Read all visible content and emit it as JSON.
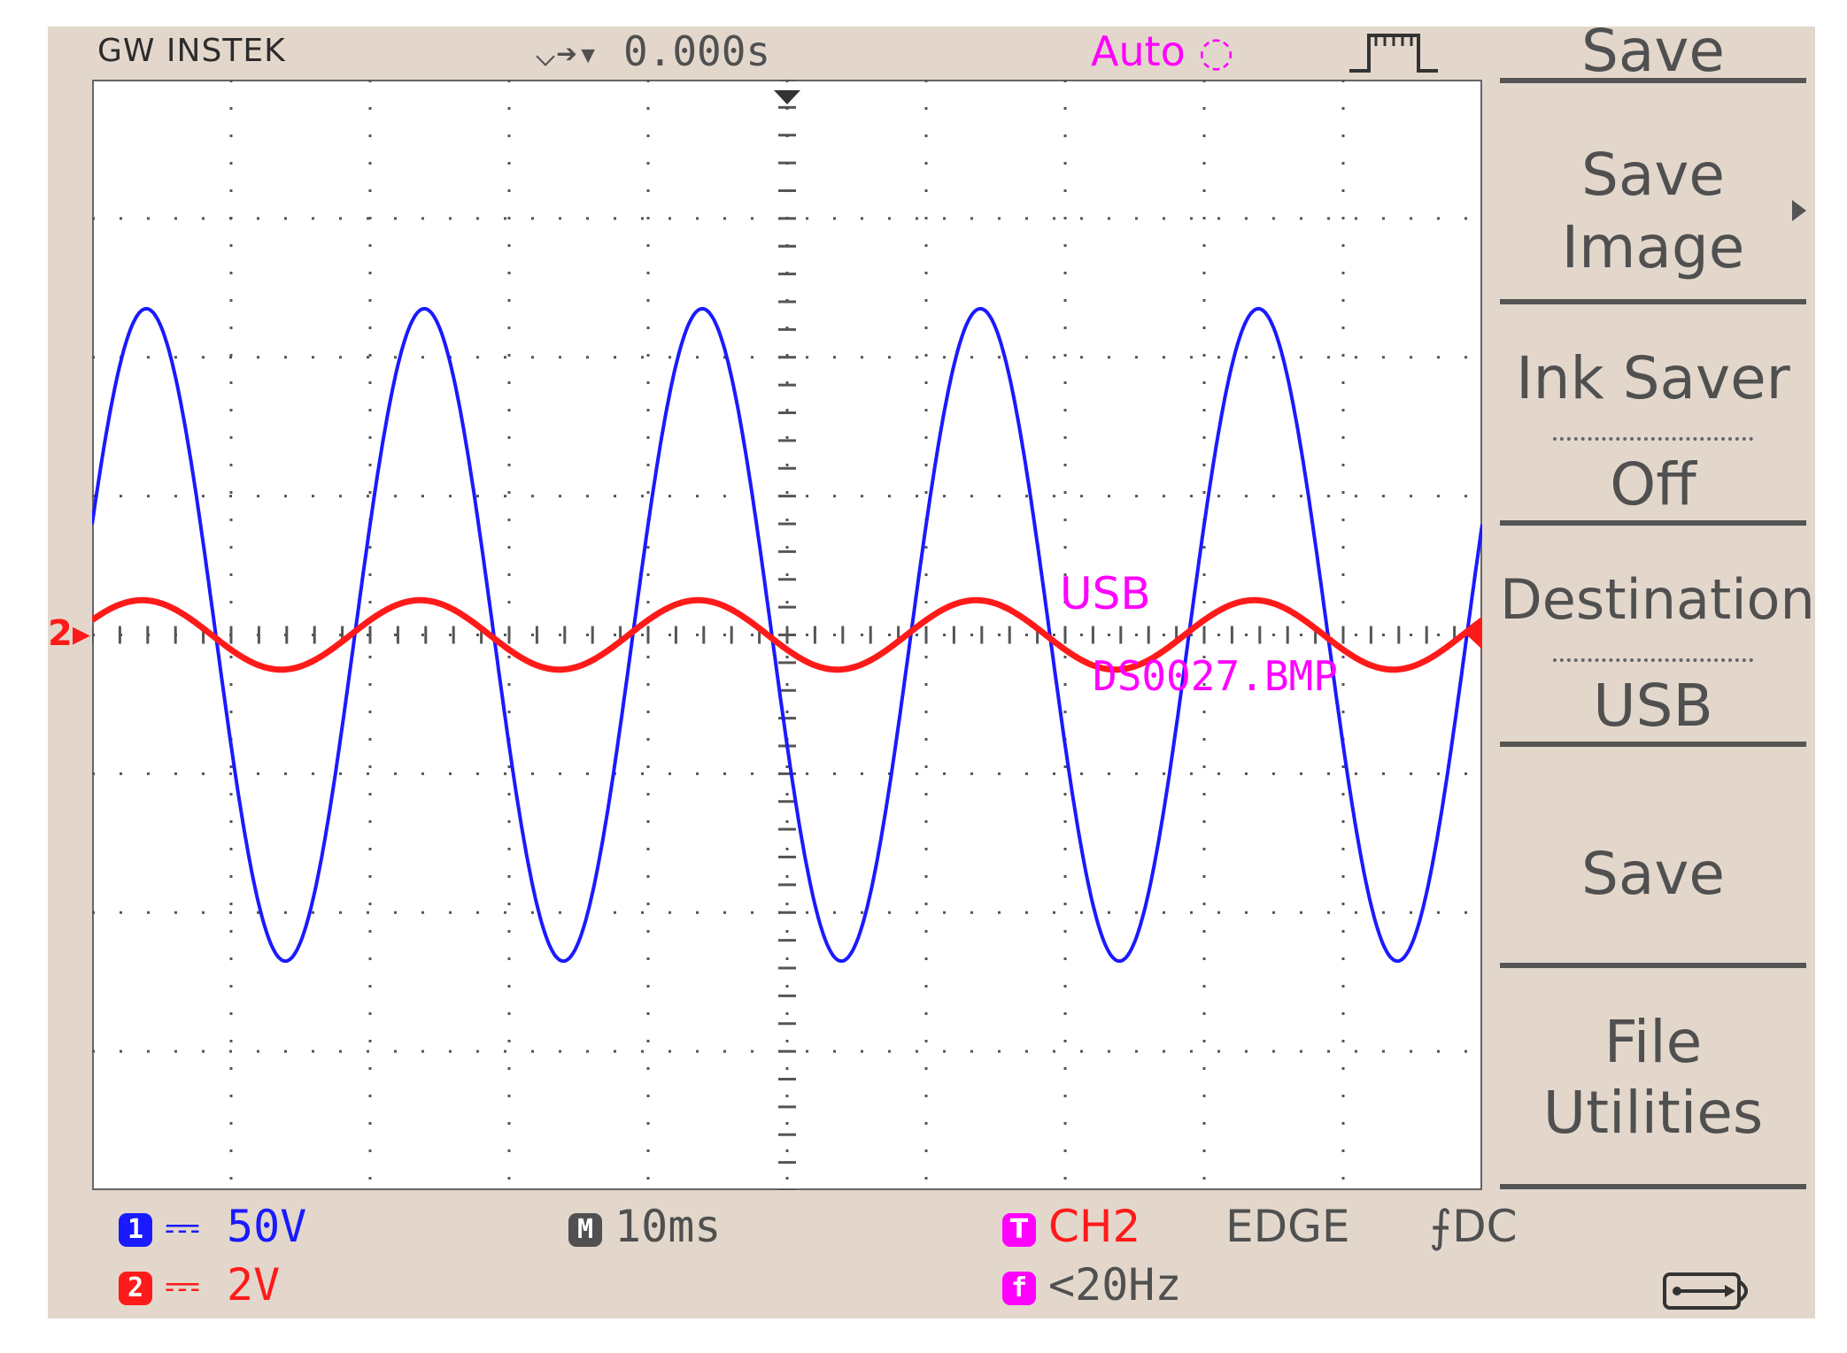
{
  "header": {
    "brand": "GW INSTEK",
    "trigger_position": "0.000s",
    "acquire_mode": "Auto"
  },
  "softkeys": {
    "title": "Save",
    "save_image": [
      "Save",
      "Image"
    ],
    "ink_saver_label": "Ink Saver",
    "ink_saver_value": "Off",
    "destination_label": "Destination",
    "destination_value": "USB",
    "save": "Save",
    "file_utilities": [
      "File",
      "Utilities"
    ]
  },
  "screen_overlay": {
    "destination": "USB",
    "filename": "DS0027.BMP"
  },
  "status": {
    "ch1_badge": "1",
    "ch1_coupling": "⎓",
    "ch1_scale": "50V",
    "ch2_badge": "2",
    "ch2_coupling": "⎓",
    "ch2_scale": "2V",
    "timebase_badge": "M",
    "timebase": "10ms",
    "trigger_badge": "T",
    "trigger_source": "CH2",
    "trigger_type": "EDGE",
    "trigger_coupling": "DC",
    "freq_badge": "f",
    "frequency": "<20Hz"
  },
  "colors": {
    "ch1": "#1a1aff",
    "ch2": "#ff1a1a",
    "accent": "#ff00ff",
    "grid": "#555555",
    "screen_bg": "#e3d7cc"
  },
  "icons": {
    "trigger_edge": "rising-edge-icon",
    "usb": "usb-icon",
    "ch2_marker": "channel-2-ground-marker-icon",
    "trigger_level": "trigger-level-arrow-icon",
    "trigger_point": "trigger-position-marker-icon",
    "menu_arrow": "submenu-arrow-icon"
  },
  "chart_data": {
    "type": "line",
    "x_unit": "div",
    "y_unit": "div",
    "xlim": [
      0,
      10
    ],
    "ylim": [
      -4,
      4
    ],
    "grid": true,
    "series": [
      {
        "channel": "1",
        "amplitude_div": 2.35,
        "period_div": 2.0,
        "phase_first_peak_div": 0.39,
        "offset_div": 0.0,
        "color": "#1a1aff"
      },
      {
        "channel": "2",
        "amplitude_div": 0.25,
        "period_div": 2.0,
        "phase_first_peak_div": 0.36,
        "offset_div": 0.0,
        "color": "#ff1a1a"
      }
    ]
  }
}
